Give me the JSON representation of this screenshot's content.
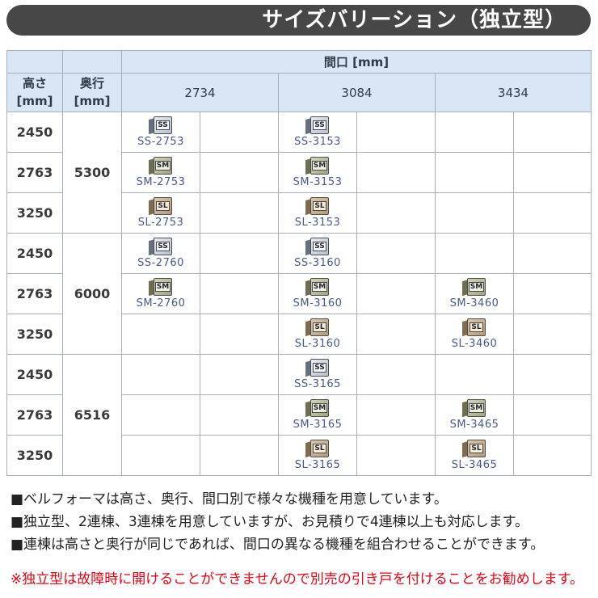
{
  "title": "サイズバリーション（独立型）",
  "table": {
    "span_header": "間口 [mm]",
    "corner_height_label": "高さ\n[mm]",
    "corner_depth_label": "奥行\n[mm]",
    "width_headers": [
      "2734",
      "3084",
      "3434"
    ],
    "groups": [
      {
        "depth": "5300",
        "rows": [
          {
            "height": "2450",
            "cells": [
              {
                "series": "SS",
                "model": "SS-2753"
              },
              {
                "series": "SS",
                "model": "SS-3153"
              },
              null
            ]
          },
          {
            "height": "2763",
            "cells": [
              {
                "series": "SM",
                "model": "SM-2753"
              },
              {
                "series": "SM",
                "model": "SM-3153"
              },
              null
            ]
          },
          {
            "height": "3250",
            "cells": [
              {
                "series": "SL",
                "model": "SL-2753"
              },
              {
                "series": "SL",
                "model": "SL-3153"
              },
              null
            ]
          }
        ]
      },
      {
        "depth": "6000",
        "rows": [
          {
            "height": "2450",
            "cells": [
              {
                "series": "SS",
                "model": "SS-2760"
              },
              {
                "series": "SS",
                "model": "SS-3160"
              },
              null
            ]
          },
          {
            "height": "2763",
            "cells": [
              {
                "series": "SM",
                "model": "SM-2760"
              },
              {
                "series": "SM",
                "model": "SM-3160"
              },
              {
                "series": "SM",
                "model": "SM-3460"
              }
            ]
          },
          {
            "height": "3250",
            "cells": [
              null,
              {
                "series": "SL",
                "model": "SL-3160"
              },
              {
                "series": "SL",
                "model": "SL-3460"
              }
            ]
          }
        ]
      },
      {
        "depth": "6516",
        "rows": [
          {
            "height": "2450",
            "cells": [
              null,
              {
                "series": "SS",
                "model": "SS-3165"
              },
              null
            ]
          },
          {
            "height": "2763",
            "cells": [
              null,
              {
                "series": "SM",
                "model": "SM-3165"
              },
              {
                "series": "SM",
                "model": "SM-3465"
              }
            ]
          },
          {
            "height": "3250",
            "cells": [
              null,
              {
                "series": "SL",
                "model": "SL-3165"
              },
              {
                "series": "SL",
                "model": "SL-3465"
              }
            ]
          }
        ]
      }
    ]
  },
  "icons": {
    "SS": {
      "label": "SS",
      "side": "#66707e",
      "face_light": "#e8edf3",
      "face_dark": "#b6c0cc",
      "tag_bg": "#f7f9fc"
    },
    "SM": {
      "label": "SM",
      "side": "#6e6e52",
      "face_light": "#d3d3b8",
      "face_dark": "#a3a383",
      "tag_bg": "#f0f0e2"
    },
    "SL": {
      "label": "SL",
      "side": "#7e6b52",
      "face_light": "#dcc9aa",
      "face_dark": "#b49a76",
      "tag_bg": "#f4ead9"
    }
  },
  "notes": [
    "■ベルフォーマは高さ、奥行、間口別で様々な機種を用意しています。",
    "■独立型、2連棟、3連棟を用意していますが、お見積りで4連棟以上も対応します。",
    "■連棟は高さと奥行が同じであれば、間口の異なる機種を組合わせることができます。"
  ],
  "warning": "※独立型は故障時に開けることができませんので別売の引き戸を付けることをお勧めします。",
  "colors": {
    "title_bg": "#474747",
    "header_bg": "#d8e6f5",
    "left_col_bg": "#f3f7fb",
    "border": "#a7b0ba",
    "model_text": "#47598a",
    "warning_text": "#e60012"
  }
}
